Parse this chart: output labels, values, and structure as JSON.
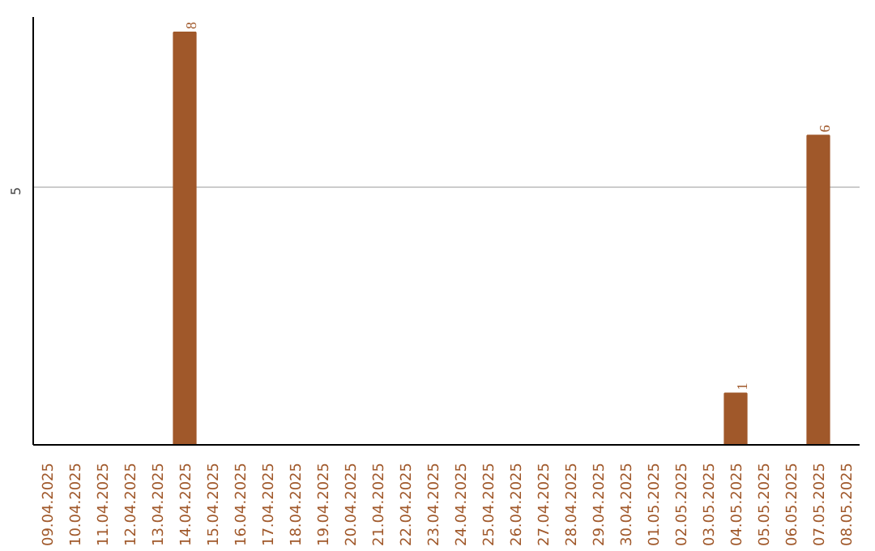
{
  "chart_data": {
    "type": "bar",
    "categories": [
      "09.04.2025",
      "10.04.2025",
      "11.04.2025",
      "12.04.2025",
      "13.04.2025",
      "14.04.2025",
      "15.04.2025",
      "16.04.2025",
      "17.04.2025",
      "18.04.2025",
      "19.04.2025",
      "20.04.2025",
      "21.04.2025",
      "22.04.2025",
      "23.04.2025",
      "24.04.2025",
      "25.04.2025",
      "26.04.2025",
      "27.04.2025",
      "28.04.2025",
      "29.04.2025",
      "30.04.2025",
      "01.05.2025",
      "02.05.2025",
      "03.05.2025",
      "04.05.2025",
      "05.05.2025",
      "06.05.2025",
      "07.05.2025",
      "08.05.2025"
    ],
    "values": [
      0,
      0,
      0,
      0,
      0,
      8,
      0,
      0,
      0,
      0,
      0,
      0,
      0,
      0,
      0,
      0,
      0,
      0,
      0,
      0,
      0,
      0,
      0,
      0,
      0,
      1,
      0,
      0,
      6,
      0
    ],
    "value_labels": [
      null,
      null,
      null,
      null,
      null,
      "8",
      null,
      null,
      null,
      null,
      null,
      null,
      null,
      null,
      null,
      null,
      null,
      null,
      null,
      null,
      null,
      null,
      null,
      null,
      null,
      "1",
      null,
      null,
      "6",
      null
    ],
    "color": "#a0582a",
    "ylim": [
      0,
      8.3
    ],
    "yticks": [
      5
    ],
    "grid": "y"
  }
}
